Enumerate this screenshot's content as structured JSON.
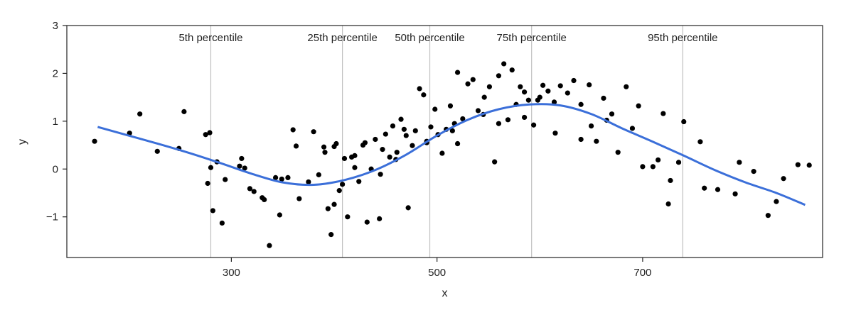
{
  "chart_data": {
    "type": "scatter",
    "title": "",
    "xlabel": "x",
    "ylabel": "y",
    "xlim": [
      140,
      875
    ],
    "ylim": [
      -1.85,
      3
    ],
    "xticks": [
      300,
      500,
      700
    ],
    "yticks": [
      3,
      2,
      1,
      0,
      -1
    ],
    "ytick_labels": [
      "3",
      "2",
      "1",
      "0",
      "−1"
    ],
    "grid": false,
    "colors": {
      "points": "#000000",
      "curve": "#3b6fd9",
      "vlines": "#c0c0c0"
    },
    "percentiles": [
      {
        "label": "5th percentile",
        "x": 280
      },
      {
        "label": "25th percentile",
        "x": 408
      },
      {
        "label": "50th percentile",
        "x": 493
      },
      {
        "label": "75th percentile",
        "x": 592
      },
      {
        "label": "95th percentile",
        "x": 739
      }
    ],
    "smooth_curve": {
      "x": [
        170,
        200,
        230,
        260,
        290,
        320,
        350,
        380,
        410,
        440,
        470,
        500,
        530,
        560,
        590,
        620,
        650,
        680,
        710,
        740,
        770,
        800,
        830,
        858
      ],
      "y": [
        0.88,
        0.7,
        0.52,
        0.33,
        0.12,
        -0.1,
        -0.28,
        -0.33,
        -0.23,
        -0.02,
        0.3,
        0.7,
        1.03,
        1.25,
        1.35,
        1.33,
        1.15,
        0.85,
        0.57,
        0.28,
        -0.02,
        -0.28,
        -0.5,
        -0.75
      ]
    },
    "points": {
      "x": [
        167,
        201,
        211,
        228,
        249,
        254,
        275,
        277,
        279,
        280,
        282,
        286,
        291,
        294,
        308,
        313,
        318,
        322,
        332,
        337,
        343,
        347,
        349,
        360,
        363,
        366,
        375,
        380,
        385,
        391,
        394,
        397,
        400,
        402,
        405,
        408,
        410,
        413,
        417,
        420,
        424,
        428,
        432,
        436,
        440,
        444,
        447,
        450,
        454,
        457,
        461,
        465,
        468,
        472,
        476,
        479,
        483,
        487,
        490,
        494,
        498,
        501,
        505,
        509,
        513,
        517,
        520,
        525,
        530,
        535,
        540,
        546,
        551,
        556,
        560,
        565,
        569,
        573,
        577,
        581,
        585,
        589,
        594,
        598,
        603,
        608,
        614,
        620,
        627,
        633,
        640,
        648,
        655,
        662,
        670,
        676,
        684,
        696,
        710,
        715,
        720,
        727,
        735,
        740,
        756,
        773,
        794,
        808,
        822,
        837,
        851,
        862,
        390,
        420,
        445,
        470,
        520,
        545,
        600,
        650,
        700,
        310,
        330,
        355,
        400,
        430,
        460,
        490,
        515,
        560,
        585,
        615,
        640,
        665,
        690,
        725,
        760,
        790,
        830
      ],
      "y": [
        0.58,
        0.75,
        1.15,
        0.37,
        0.43,
        1.2,
        0.72,
        -0.3,
        0.76,
        0.03,
        -0.87,
        0.15,
        -1.13,
        -0.22,
        0.06,
        0.02,
        -0.41,
        -0.47,
        -0.64,
        -1.6,
        -0.18,
        -0.96,
        -0.21,
        0.82,
        0.48,
        -0.62,
        -0.27,
        0.78,
        -0.12,
        0.35,
        -0.83,
        -1.37,
        -0.74,
        0.53,
        -0.45,
        -0.32,
        0.22,
        -1.0,
        0.25,
        0.03,
        -0.26,
        0.5,
        -1.11,
        0.0,
        0.62,
        -1.04,
        0.41,
        0.73,
        0.25,
        0.9,
        0.35,
        1.04,
        0.83,
        -0.81,
        0.49,
        0.8,
        1.68,
        1.55,
        0.58,
        0.88,
        1.25,
        0.72,
        0.33,
        0.83,
        1.32,
        0.95,
        2.02,
        1.05,
        1.78,
        1.87,
        1.22,
        1.5,
        1.72,
        0.15,
        1.95,
        2.2,
        1.03,
        2.07,
        1.35,
        1.72,
        1.61,
        1.44,
        0.92,
        1.44,
        1.75,
        1.63,
        1.4,
        1.74,
        1.59,
        1.85,
        0.62,
        1.76,
        0.58,
        1.48,
        1.15,
        0.35,
        1.72,
        1.32,
        0.05,
        0.19,
        1.16,
        -0.24,
        0.14,
        0.99,
        0.57,
        -0.43,
        0.14,
        -0.05,
        -0.97,
        -0.2,
        0.09,
        0.08,
        0.46,
        0.28,
        -0.11,
        0.7,
        0.53,
        1.14,
        1.5,
        0.9,
        0.05,
        0.22,
        -0.6,
        -0.18,
        0.47,
        0.55,
        0.2,
        0.55,
        0.8,
        0.95,
        1.08,
        0.75,
        1.35,
        1.02,
        0.85,
        -0.73,
        -0.4,
        -0.52,
        -0.68
      ]
    }
  }
}
